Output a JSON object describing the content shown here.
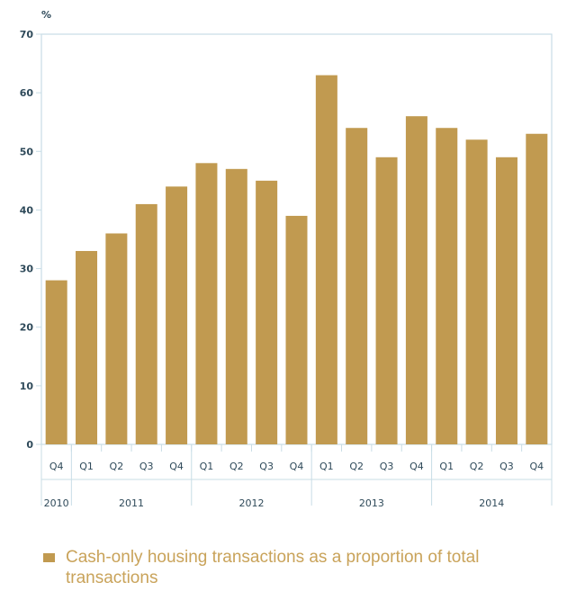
{
  "chart_data": {
    "type": "bar",
    "ylabel": "%",
    "ylim": [
      0,
      70
    ],
    "yticks": [
      0,
      10,
      20,
      30,
      40,
      50,
      60,
      70
    ],
    "grid": false,
    "categories": [
      "Q4",
      "Q1",
      "Q2",
      "Q3",
      "Q4",
      "Q1",
      "Q2",
      "Q3",
      "Q4",
      "Q1",
      "Q2",
      "Q3",
      "Q4",
      "Q1",
      "Q2",
      "Q3",
      "Q4"
    ],
    "years": [
      {
        "label": "2010",
        "quarters": 1
      },
      {
        "label": "2011",
        "quarters": 4
      },
      {
        "label": "2012",
        "quarters": 4
      },
      {
        "label": "2013",
        "quarters": 4
      },
      {
        "label": "2014",
        "quarters": 4
      }
    ],
    "series": [
      {
        "name": "Cash-only housing transactions as a proportion of total transactions",
        "values": [
          28,
          33,
          36,
          41,
          44,
          48,
          47,
          45,
          39,
          63,
          54,
          49,
          56,
          54,
          52,
          49,
          53
        ]
      }
    ],
    "legend_position": "bottom",
    "colors": {
      "bar": "#c19a50",
      "legend_text": "#c9a35a",
      "axis": "#c8dde6",
      "tick_text": "#2f4a5a"
    }
  }
}
